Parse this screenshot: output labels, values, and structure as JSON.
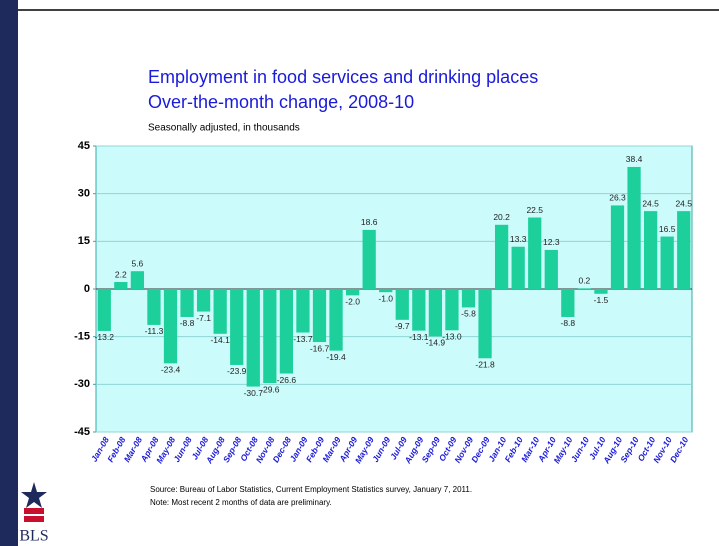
{
  "chart_data": {
    "type": "bar",
    "title": "Employment in food services and drinking places",
    "subtitle": "Over-the-month change, 2008-10",
    "ylabel": "Seasonally adjusted, in thousands",
    "source": "Source:  Bureau of Labor Statistics, Current Employment Statistics survey, January 7, 2011.",
    "note": "Note:  Most recent 2 months of data are preliminary.",
    "logo": "BLS",
    "categories": [
      "Jan-08",
      "Feb-08",
      "Mar-08",
      "Apr-08",
      "May-08",
      "Jun-08",
      "Jul-08",
      "Aug-08",
      "Sep-08",
      "Oct-08",
      "Nov-08",
      "Dec-08",
      "Jan-09",
      "Feb-09",
      "Mar-09",
      "Apr-09",
      "May-09",
      "Jun-09",
      "Jul-09",
      "Aug-09",
      "Sep-09",
      "Oct-09",
      "Nov-09",
      "Dec-09",
      "Jan-10",
      "Feb-10",
      "Mar-10",
      "Apr-10",
      "May-10",
      "Jun-10",
      "Jul-10",
      "Aug-10",
      "Sep-10",
      "Oct-10",
      "Nov-10",
      "Dec-10"
    ],
    "values": [
      -13.2,
      2.2,
      5.6,
      -11.3,
      -23.4,
      -8.8,
      -7.1,
      -14.1,
      -23.9,
      -30.7,
      -29.6,
      -26.6,
      -13.7,
      -16.7,
      -19.4,
      -2.0,
      18.6,
      -1.0,
      -9.7,
      -13.1,
      -14.9,
      -13.0,
      -5.8,
      -21.8,
      20.2,
      13.3,
      22.5,
      12.3,
      -8.8,
      0.2,
      -1.5,
      26.3,
      38.4,
      24.5,
      16.5,
      24.5
    ],
    "value_labels": [
      "-13.2",
      "2.2",
      "5.6",
      "-11.3",
      "-23.4",
      "-8.8",
      "-7.1",
      "-14.1",
      "-23.9",
      "-30.7",
      "-29.6",
      "-26.6",
      "-13.7",
      "-16.7",
      "-19.4",
      "-2.0",
      "18.6",
      "-1.0",
      "-9.7",
      "-13.1",
      "-14.9",
      "-13.0",
      "-5.8",
      "-21.8",
      "20.2",
      "13.3",
      "22.5",
      "12.3",
      "-8.8",
      "0.2",
      "-1.5",
      "26.3",
      "38.4",
      "24.5",
      "16.5",
      "24.5"
    ],
    "color": "#1ccf9b",
    "ylim": [
      -45,
      45
    ],
    "yticks": [
      -45,
      -30,
      -15,
      0,
      15,
      30,
      45
    ],
    "grid": true
  }
}
